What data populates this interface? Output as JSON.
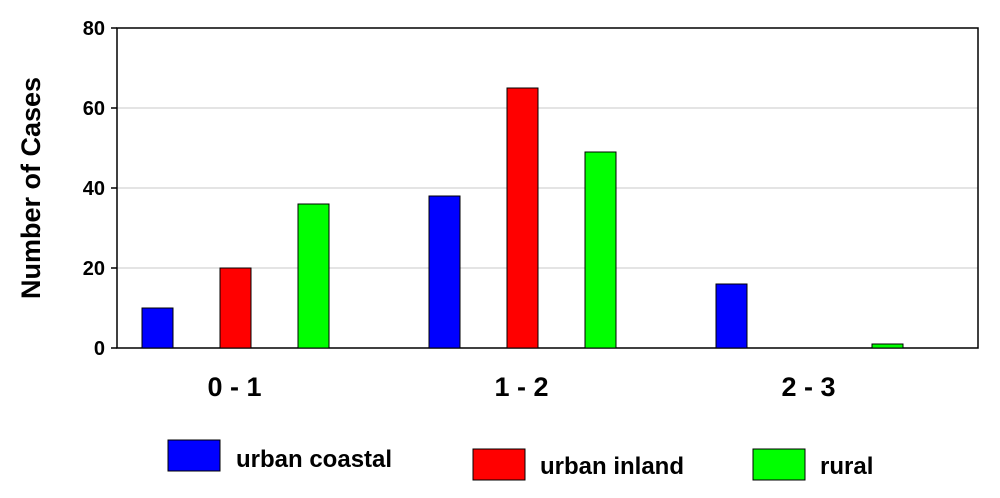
{
  "chart_data": {
    "type": "bar",
    "categories": [
      "0 - 1",
      "1 - 2",
      "2 - 3"
    ],
    "series": [
      {
        "name": "urban coastal",
        "values": [
          10,
          38,
          16
        ],
        "color": "#0000ff"
      },
      {
        "name": "urban inland",
        "values": [
          20,
          65,
          0
        ],
        "color": "#ff0000"
      },
      {
        "name": "rural",
        "values": [
          36,
          49,
          1
        ],
        "color": "#00ff00"
      }
    ],
    "ylabel": "Number of Cases",
    "xlabel": "",
    "ylim": [
      0,
      80
    ],
    "yticks": [
      0,
      20,
      40,
      60,
      80
    ],
    "grid": true,
    "legend_position": "bottom"
  }
}
